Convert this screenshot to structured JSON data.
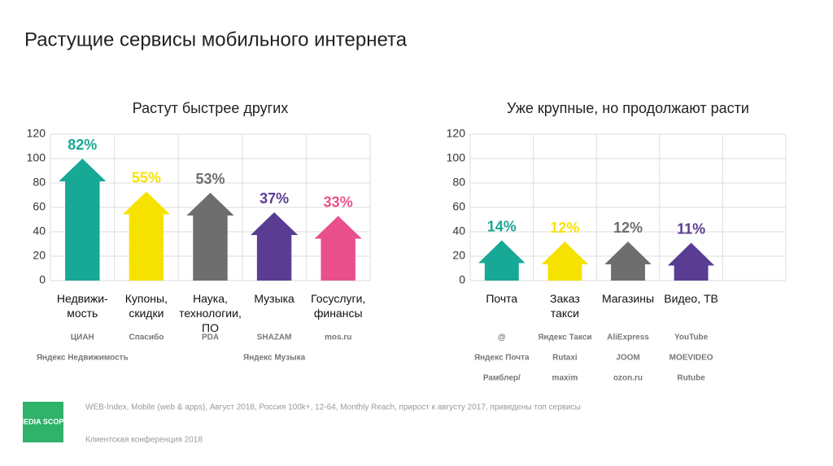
{
  "title": "Растущие сервисы мобильного интернета",
  "chart_data": [
    {
      "type": "arrow",
      "title": "Растут быстрее других",
      "categories": [
        "Недвижи-\nмость",
        "Купоны,\nскидки",
        "Наука,\nтехнологии,\nПО",
        "Музыка",
        "Госуслуги,\nфинансы"
      ],
      "values": [
        100,
        73,
        72,
        56,
        53
      ],
      "annotations": [
        "82%",
        "55%",
        "53%",
        "37%",
        "33%"
      ],
      "colors": [
        "#17a896",
        "#f6e200",
        "#6e6e6e",
        "#5a3d93",
        "#e9508b"
      ],
      "logos": [
        [
          "ЦИАН",
          "Яндекс Недвижимость"
        ],
        [
          "Спасибо"
        ],
        [
          "PDA"
        ],
        [
          "SHAZAM",
          "Яндекс Музыка"
        ],
        [
          "mos.ru"
        ]
      ],
      "ylim": [
        0,
        120
      ],
      "yticks": [
        0,
        20,
        40,
        60,
        80,
        100,
        120
      ],
      "grid": true
    },
    {
      "type": "arrow",
      "title": "Уже крупные, но продолжают расти",
      "categories": [
        "Почта",
        "Заказ\nтакси",
        "Магазины",
        "Видео, ТВ",
        null
      ],
      "values": [
        33,
        32,
        32,
        31,
        null
      ],
      "annotations": [
        "14%",
        "12%",
        "12%",
        "11%",
        null
      ],
      "colors": [
        "#17a896",
        "#f6e200",
        "#6e6e6e",
        "#5a3d93",
        null
      ],
      "logos": [
        [
          "@",
          "Яндекс Почта",
          "Рамблер/"
        ],
        [
          "Яндекс Такси",
          "Rutaxi",
          "maxim"
        ],
        [
          "AliExpress",
          "JOOM",
          "ozon.ru"
        ],
        [
          "YouTube",
          "MOEVIDEO",
          "Rutube"
        ],
        []
      ],
      "ylim": [
        0,
        120
      ],
      "yticks": [
        0,
        20,
        40,
        60,
        80,
        100,
        120
      ],
      "grid": true
    }
  ],
  "footer": {
    "logo": "MEDIA SCOPE",
    "source": "WEB-Index, Mobile (web & apps), Август 2018, Россия 100k+, 12-64, Monthly Reach, прирост к августу 2017, приведены топ сервисы",
    "event": "Клиентская конференция 2018"
  }
}
